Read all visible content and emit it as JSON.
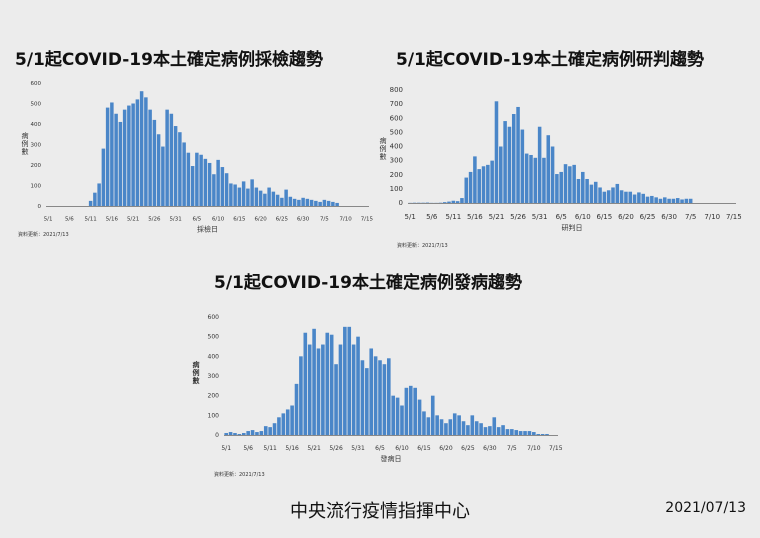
{
  "chart_data": [
    {
      "type": "bar",
      "title": "5/1起COVID-19本土確定病例採檢趨勢",
      "xlabel": "採檢日",
      "ylabel": "病例數",
      "source": "資料更新：2021/7/13",
      "ylim": [
        0,
        600
      ],
      "yticks": [
        0,
        100,
        200,
        300,
        400,
        500,
        600
      ],
      "xticks": [
        "5/1",
        "5/6",
        "5/11",
        "5/16",
        "5/21",
        "5/26",
        "5/31",
        "6/5",
        "6/10",
        "6/15",
        "6/20",
        "6/25",
        "6/30",
        "7/5",
        "7/10",
        "7/15"
      ],
      "color": "#4a86c8",
      "start_day": 0,
      "values": [
        0,
        0,
        0,
        0,
        0,
        0,
        0,
        0,
        0,
        0,
        25,
        65,
        110,
        280,
        480,
        505,
        450,
        410,
        470,
        490,
        500,
        520,
        560,
        530,
        470,
        420,
        350,
        290,
        470,
        450,
        390,
        360,
        310,
        260,
        195,
        260,
        250,
        230,
        210,
        155,
        225,
        190,
        160,
        110,
        105,
        90,
        120,
        85,
        130,
        90,
        75,
        60,
        90,
        70,
        55,
        40,
        80,
        45,
        35,
        30,
        40,
        35,
        30,
        25,
        20,
        30,
        25,
        20,
        15
      ]
    },
    {
      "type": "bar",
      "title": "5/1起COVID-19本土確定病例研判趨勢",
      "xlabel": "研判日",
      "ylabel": "病例數",
      "source": "資料更新：2021/7/13",
      "ylim": [
        0,
        800
      ],
      "yticks": [
        0,
        100,
        200,
        300,
        400,
        500,
        600,
        700,
        800
      ],
      "xticks": [
        "5/1",
        "5/6",
        "5/11",
        "5/16",
        "5/21",
        "5/26",
        "5/31",
        "6/5",
        "6/10",
        "6/15",
        "6/20",
        "6/25",
        "6/30",
        "7/5",
        "7/10",
        "7/15"
      ],
      "color": "#4a86c8",
      "start_day": 0,
      "values": [
        1,
        2,
        2,
        2,
        3,
        1,
        1,
        2,
        6,
        10,
        16,
        13,
        35,
        180,
        220,
        330,
        240,
        260,
        270,
        300,
        720,
        400,
        580,
        540,
        630,
        680,
        520,
        350,
        340,
        320,
        540,
        320,
        480,
        400,
        205,
        220,
        275,
        260,
        270,
        170,
        220,
        170,
        130,
        150,
        110,
        80,
        90,
        110,
        135,
        90,
        80,
        80,
        60,
        75,
        65,
        45,
        50,
        40,
        30,
        40,
        30,
        30,
        35,
        25,
        30,
        30
      ]
    },
    {
      "type": "bar",
      "title": "5/1起COVID-19本土確定病例發病趨勢",
      "xlabel": "發病日",
      "ylabel": "病例數",
      "source": "資料更新：2021/7/13",
      "ylim": [
        0,
        600
      ],
      "yticks": [
        0,
        100,
        200,
        300,
        400,
        500,
        600
      ],
      "xticks": [
        "5/1",
        "5/6",
        "5/11",
        "5/16",
        "5/21",
        "5/26",
        "5/31",
        "6/5",
        "6/10",
        "6/15",
        "6/20",
        "6/25",
        "6/30",
        "7/5",
        "7/10",
        "7/15"
      ],
      "color": "#4a86c8",
      "start_day": 0,
      "values": [
        10,
        15,
        10,
        5,
        10,
        20,
        25,
        15,
        20,
        45,
        40,
        60,
        90,
        110,
        130,
        150,
        260,
        400,
        520,
        460,
        540,
        440,
        460,
        520,
        510,
        360,
        460,
        550,
        550,
        460,
        500,
        380,
        340,
        440,
        400,
        380,
        360,
        390,
        200,
        190,
        150,
        240,
        250,
        240,
        180,
        120,
        90,
        200,
        100,
        80,
        60,
        80,
        110,
        100,
        70,
        50,
        100,
        70,
        60,
        40,
        45,
        90,
        40,
        50,
        30,
        30,
        25,
        20,
        20,
        20,
        15,
        5,
        5,
        5
      ]
    }
  ],
  "footer": {
    "org": "中央流行疫情指揮中心",
    "date": "2021/07/13"
  }
}
